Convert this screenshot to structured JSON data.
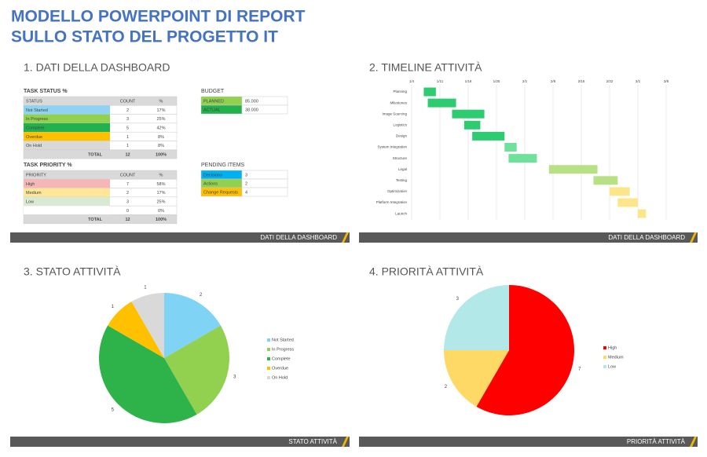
{
  "header": {
    "title": [
      "MODELLO POWERPOINT DI REPORT",
      "SULLO STATO DEL PROGETTO IT"
    ]
  },
  "dashboard": {
    "heading": "1. DATI DELLA DASHBOARD",
    "footer": "DATI DELLA DASHBOARD",
    "task_status": {
      "title": "TASK STATUS %",
      "columns": [
        "STATUS",
        "COUNT",
        "%"
      ],
      "rows": [
        [
          "Not Started",
          "2",
          "17%"
        ],
        [
          "In Progress",
          "3",
          "25%"
        ],
        [
          "Complete",
          "5",
          "42%"
        ],
        [
          "Overdue",
          "1",
          "8%"
        ],
        [
          "On Hold",
          "1",
          "8%"
        ]
      ],
      "row_colors": [
        "#8fd3f4",
        "#92d050",
        "#22b14c",
        "#ffc000",
        "#d9d9d9"
      ],
      "total": [
        "TOTAL",
        "12",
        "100%"
      ]
    },
    "task_priority": {
      "title": "TASK PRIORITY %",
      "columns": [
        "PRIORITY",
        "COUNT",
        "%"
      ],
      "rows": [
        [
          "High",
          "7",
          "58%"
        ],
        [
          "Medium",
          "2",
          "17%"
        ],
        [
          "Low",
          "3",
          "25%"
        ],
        [
          null,
          "0",
          "0%"
        ]
      ],
      "row_colors": [
        "#f4b6b6",
        "#ffe699",
        "#d9ead3",
        "#ffffff"
      ],
      "total": [
        "TOTAL",
        "12",
        "100%"
      ]
    },
    "budget": {
      "title": "BUDGET",
      "rows": [
        [
          "PLANNED",
          "85.000"
        ],
        [
          "ACTUAL",
          "38.000"
        ]
      ],
      "row_colors": [
        "#92d050",
        "#22b14c"
      ]
    },
    "pending_items": {
      "title": "PENDING ITEMS",
      "rows": [
        [
          "Decisions",
          "3"
        ],
        [
          "Actions",
          "2"
        ],
        [
          "Change Requests",
          "4"
        ]
      ],
      "row_colors": [
        "#00b0f0",
        "#92d050",
        "#ffc000"
      ]
    }
  },
  "chart_data": [
    {
      "type": "gantt",
      "title": "2. TIMELINE ATTIVITÀ",
      "footer": "DATI DELLA DASHBOARD",
      "categories": [
        "Planning",
        "Milestones",
        "Image Sourcing",
        "Logistics",
        "Design",
        "System Integration",
        "Structure",
        "Legal",
        "Testing",
        "Optimization",
        "Platform Integration",
        "Launch"
      ],
      "start": [
        3,
        4,
        10,
        13,
        15,
        23,
        24,
        34,
        45,
        49,
        51,
        56
      ],
      "end": [
        6,
        11,
        18,
        17,
        23,
        26,
        31,
        46,
        51,
        54,
        56,
        58
      ],
      "colors": [
        "#2ecc71",
        "#2ecc71",
        "#2ecc71",
        "#2ecc71",
        "#2ecc71",
        "#6ee29a",
        "#6ee29a",
        "#b8e186",
        "#b8e186",
        "#fde68a",
        "#fde68a",
        "#fde68a"
      ],
      "xlim": [
        0,
        63
      ],
      "xticks": [
        {
          "value": 0,
          "label": "1/4"
        },
        {
          "value": 7,
          "label": "1/11"
        },
        {
          "value": 14,
          "label": "1/18"
        },
        {
          "value": 21,
          "label": "1/25"
        },
        {
          "value": 28,
          "label": "2/1"
        },
        {
          "value": 35,
          "label": "2/8"
        },
        {
          "value": 42,
          "label": "2/15"
        },
        {
          "value": 49,
          "label": "2/22"
        },
        {
          "value": 56,
          "label": "3/1"
        },
        {
          "value": 63,
          "label": "3/8"
        }
      ],
      "grid": true
    },
    {
      "type": "pie",
      "title": "3. STATO ATTIVITÀ",
      "footer": "STATO ATTIVITÀ",
      "categories": [
        "Not Started",
        "In Progress",
        "Complete",
        "Overdue",
        "On Hold"
      ],
      "values": [
        2,
        3,
        5,
        1,
        1
      ],
      "colors": [
        "#7fd3f5",
        "#92d050",
        "#2db34a",
        "#ffc000",
        "#d9d9d9"
      ]
    },
    {
      "type": "pie",
      "title": "4. PRIORITÀ ATTIVITÀ",
      "footer": "PRIORITÀ ATTIVITÀ",
      "categories": [
        "High",
        "Medium",
        "Low"
      ],
      "values": [
        7,
        2,
        3
      ],
      "colors": [
        "#ff0000",
        "#ffd966",
        "#b3e8e8"
      ]
    }
  ]
}
